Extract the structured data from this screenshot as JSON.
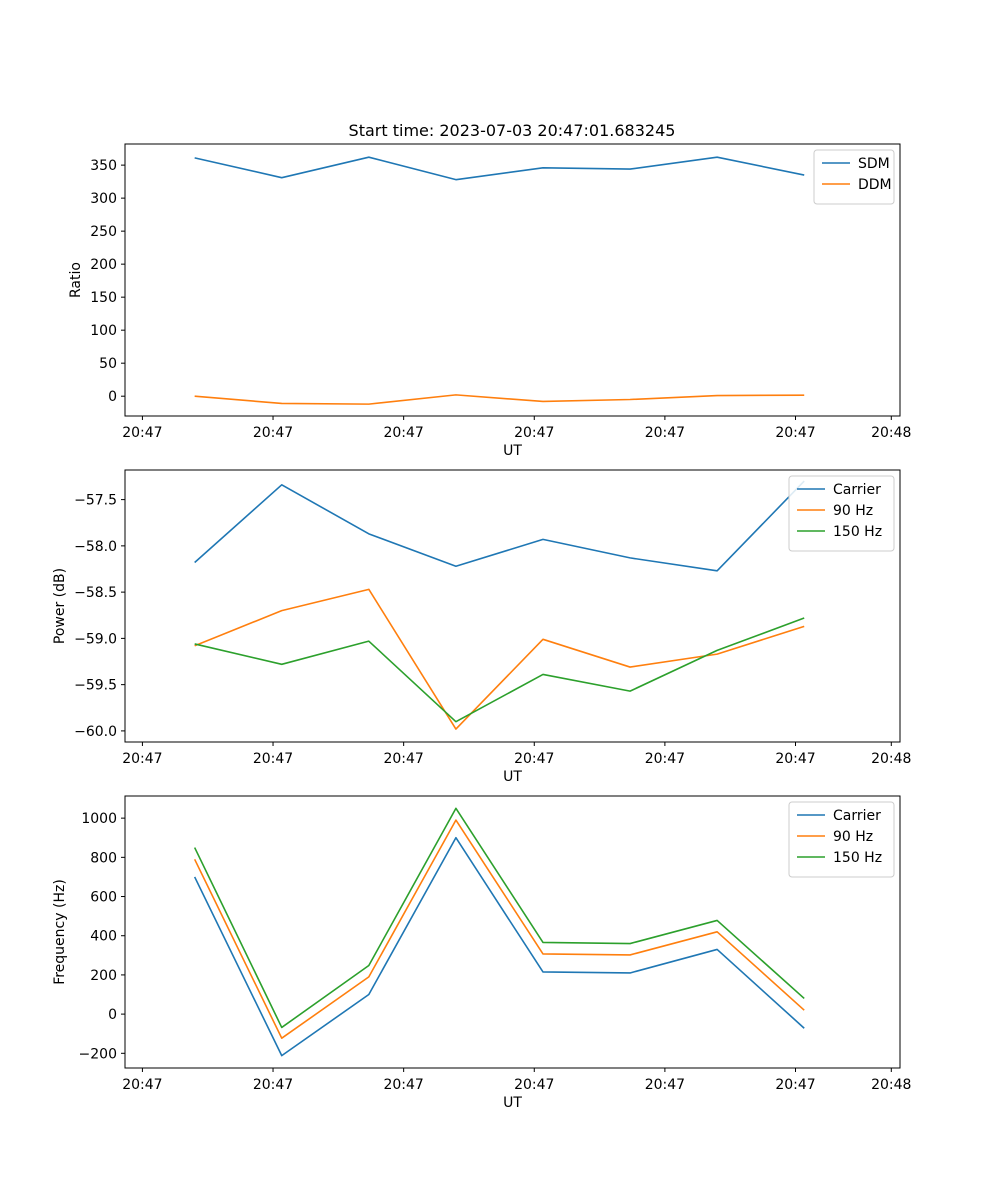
{
  "title": "Start time: 2023-07-03 20:47:01.683245",
  "colors": {
    "blue": "#1f77b4",
    "orange": "#ff7f0e",
    "green": "#2ca02c"
  },
  "chart_data": [
    {
      "type": "line",
      "title": "Start time: 2023-07-03 20:47:01.683245",
      "xlabel": "UT",
      "ylabel": "Ratio",
      "x": [
        1,
        2,
        3,
        4,
        5,
        6,
        7,
        8
      ],
      "xlim": [
        0.2,
        9.1
      ],
      "xticks": [
        0.4,
        1.9,
        3.4,
        4.9,
        6.4,
        7.9,
        9.0
      ],
      "xtick_labels": [
        "20:47",
        "20:47",
        "20:47",
        "20:47",
        "20:47",
        "20:47",
        "20:48"
      ],
      "ylim": [
        -30,
        382
      ],
      "yticks": [
        0,
        50,
        100,
        150,
        200,
        250,
        300,
        350
      ],
      "ytick_labels": [
        "0",
        "50",
        "100",
        "150",
        "200",
        "250",
        "300",
        "350"
      ],
      "legend": "top-right",
      "series": [
        {
          "name": "SDM",
          "color": "#1f77b4",
          "values": [
            361,
            331,
            362,
            328,
            346,
            344,
            362,
            335
          ]
        },
        {
          "name": "DDM",
          "color": "#ff7f0e",
          "values": [
            0,
            -11,
            -12,
            2,
            -8,
            -5,
            1,
            1.5
          ]
        }
      ]
    },
    {
      "type": "line",
      "xlabel": "UT",
      "ylabel": "Power (dB)",
      "x": [
        1,
        2,
        3,
        4,
        5,
        6,
        7,
        8
      ],
      "xlim": [
        0.2,
        9.1
      ],
      "xticks": [
        0.4,
        1.9,
        3.4,
        4.9,
        6.4,
        7.9,
        9.0
      ],
      "xtick_labels": [
        "20:47",
        "20:47",
        "20:47",
        "20:47",
        "20:47",
        "20:47",
        "20:48"
      ],
      "ylim": [
        -60.12,
        -57.18
      ],
      "yticks": [
        -60.0,
        -59.5,
        -59.0,
        -58.5,
        -58.0,
        -57.5
      ],
      "ytick_labels": [
        "−60.0",
        "−59.5",
        "−59.0",
        "−58.5",
        "−58.0",
        "−57.5"
      ],
      "legend": "top-right",
      "series": [
        {
          "name": "Carrier",
          "color": "#1f77b4",
          "values": [
            -58.18,
            -57.34,
            -57.87,
            -58.22,
            -57.93,
            -58.13,
            -58.27,
            -57.3
          ]
        },
        {
          "name": "90 Hz",
          "color": "#ff7f0e",
          "values": [
            -59.08,
            -58.7,
            -58.47,
            -59.98,
            -59.01,
            -59.31,
            -59.17,
            -58.87
          ]
        },
        {
          "name": "150 Hz",
          "color": "#2ca02c",
          "values": [
            -59.06,
            -59.28,
            -59.03,
            -59.9,
            -59.39,
            -59.57,
            -59.13,
            -58.78
          ]
        }
      ]
    },
    {
      "type": "line",
      "xlabel": "UT",
      "ylabel": "Frequency (Hz)",
      "x": [
        1,
        2,
        3,
        4,
        5,
        6,
        7,
        8
      ],
      "xlim": [
        0.2,
        9.1
      ],
      "xticks": [
        0.4,
        1.9,
        3.4,
        4.9,
        6.4,
        7.9,
        9.0
      ],
      "xtick_labels": [
        "20:47",
        "20:47",
        "20:47",
        "20:47",
        "20:47",
        "20:47",
        "20:48"
      ],
      "ylim": [
        -275,
        1113
      ],
      "yticks": [
        -200,
        0,
        200,
        400,
        600,
        800,
        1000
      ],
      "ytick_labels": [
        "−200",
        "0",
        "200",
        "400",
        "600",
        "800",
        "1000"
      ],
      "legend": "top-right",
      "series": [
        {
          "name": "Carrier",
          "color": "#1f77b4",
          "values": [
            700,
            -212,
            100,
            900,
            215,
            210,
            330,
            -72
          ]
        },
        {
          "name": "90 Hz",
          "color": "#ff7f0e",
          "values": [
            790,
            -123,
            190,
            990,
            307,
            302,
            420,
            20
          ]
        },
        {
          "name": "150 Hz",
          "color": "#2ca02c",
          "values": [
            850,
            -68,
            248,
            1050,
            366,
            360,
            478,
            80
          ]
        }
      ]
    }
  ]
}
